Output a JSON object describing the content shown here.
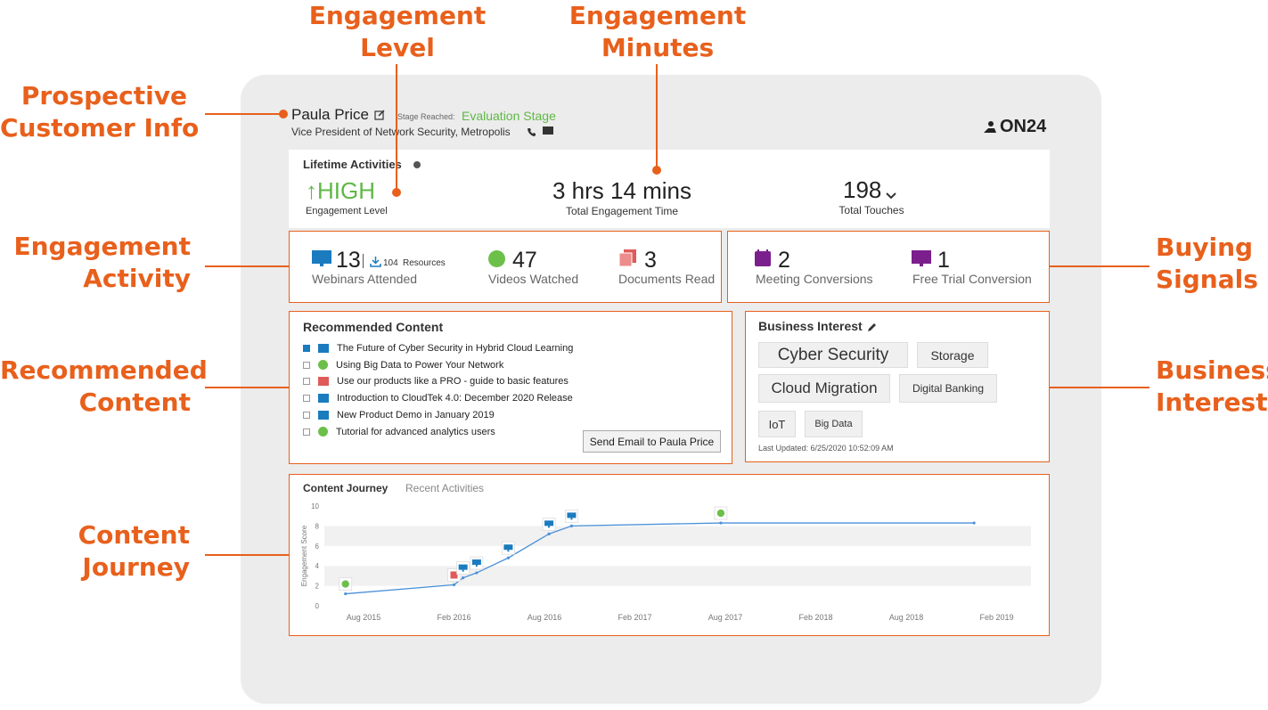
{
  "callouts": {
    "engagement_level": [
      "Engagement",
      "Level"
    ],
    "engagement_minutes": [
      "Engagement",
      "Minutes"
    ],
    "prospective_customer": [
      "Prospective",
      "Customer Info"
    ],
    "engagement_activity": [
      "Engagement",
      "Activity"
    ],
    "recommended_content": [
      "Recommended",
      "Content"
    ],
    "content_journey": [
      "Content",
      "Journey"
    ],
    "buying_signals": [
      "Buying",
      "Signals"
    ],
    "business_interests": [
      "Business",
      "Interests"
    ]
  },
  "prospect": {
    "name": "Paula Price",
    "stage_label": "Stage Reached:",
    "stage_value": "Evaluation Stage",
    "subtitle": "Vice President of Network Security, Metropolis",
    "logo": "ON24"
  },
  "lifetime": {
    "title": "Lifetime Activities",
    "level_value": "↑HIGH",
    "level_label": "Engagement Level",
    "time_value": "3 hrs 14 mins",
    "time_label": "Total Engagement Time",
    "touches_value": "198",
    "touches_label": "Total Touches"
  },
  "activity": {
    "webinars_count": "13",
    "resources_count": "104",
    "resources_label": "Resources",
    "webinars_label": "Webinars Attended",
    "videos_count": "47",
    "videos_label": "Videos Watched",
    "docs_count": "3",
    "docs_label": "Documents Read"
  },
  "signals": {
    "meeting_count": "2",
    "meeting_label": "Meeting Conversions",
    "trial_count": "1",
    "trial_label": "Free Trial Conversion"
  },
  "recommended": {
    "title": "Recommended Content",
    "items": [
      {
        "label": "The Future of Cyber Security in Hybrid Cloud Learning",
        "type": "webinar",
        "checked": true
      },
      {
        "label": "Using Big Data to Power Your Network",
        "type": "video",
        "checked": false
      },
      {
        "label": "Use our products like a PRO - guide to basic features",
        "type": "document",
        "checked": false
      },
      {
        "label": "Introduction to CloudTek 4.0: December 2020 Release",
        "type": "webinar",
        "checked": false
      },
      {
        "label": "New Product Demo in January 2019",
        "type": "webinar",
        "checked": false
      },
      {
        "label": "Tutorial for advanced analytics users",
        "type": "video",
        "checked": false
      }
    ],
    "send_button": "Send Email to Paula Price"
  },
  "business": {
    "title": "Business Interest",
    "tags": [
      "Cyber Security",
      "Storage",
      "Cloud Migration",
      "Digital Banking",
      "IoT",
      "Big Data"
    ],
    "updated": "Last Updated: 6/25/2020 10:52:09 AM"
  },
  "journey": {
    "tab_active": "Content Journey",
    "tab_inactive": "Recent Activities"
  },
  "colors": {
    "accent": "#e8601c",
    "webinar": "#1a7bbf",
    "video": "#6cc04a",
    "document": "#e05a5a",
    "signal": "#7b1f8c",
    "stage": "#5fb845"
  },
  "chart_data": {
    "type": "line",
    "title": "Content Journey",
    "ylabel": "Engagement Score",
    "xlabel": "",
    "ylim": [
      0,
      10
    ],
    "yticks": [
      0,
      2,
      4,
      6,
      8,
      10
    ],
    "xticks": [
      "Aug 2015",
      "Feb 2016",
      "Aug 2016",
      "Feb 2017",
      "Aug 2017",
      "Feb 2018",
      "Aug 2018",
      "Feb 2019"
    ],
    "x": [
      "Jun 2015",
      "Jan 2016",
      "Mar 2016",
      "Apr 2016",
      "Jun 2016",
      "Sep 2016",
      "Nov 2016",
      "Jul 2017",
      "Jan 2019"
    ],
    "xpos": [
      -0.2,
      1.0,
      1.1,
      1.25,
      1.6,
      2.05,
      2.3,
      3.95,
      6.75
    ],
    "values": [
      1.2,
      2.1,
      2.8,
      3.3,
      4.8,
      7.2,
      8.0,
      8.3,
      8.3
    ],
    "markers": [
      {
        "point": 0,
        "type": "video"
      },
      {
        "point": 1,
        "type": "document"
      },
      {
        "point": 2,
        "type": "webinar"
      },
      {
        "point": 3,
        "type": "webinar"
      },
      {
        "point": 4,
        "type": "webinar"
      },
      {
        "point": 5,
        "type": "webinar"
      },
      {
        "point": 6,
        "type": "webinar"
      },
      {
        "point": 7,
        "type": "video"
      }
    ]
  }
}
